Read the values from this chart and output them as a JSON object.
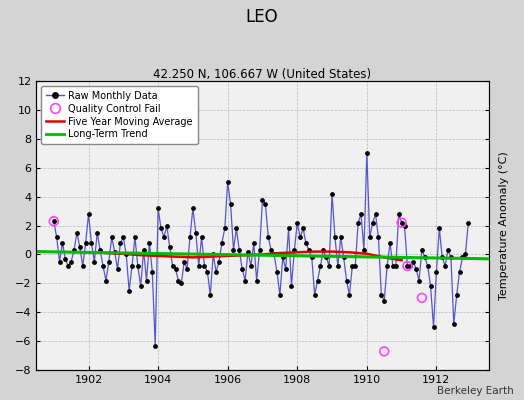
{
  "title": "LEO",
  "subtitle": "42.250 N, 106.667 W (United States)",
  "ylabel": "Temperature Anomaly (°C)",
  "credit": "Berkeley Earth",
  "ylim": [
    -8,
    12
  ],
  "xlim": [
    1900.5,
    1913.5
  ],
  "xticks": [
    1902,
    1904,
    1906,
    1908,
    1910,
    1912
  ],
  "yticks": [
    -8,
    -6,
    -4,
    -2,
    0,
    2,
    4,
    6,
    8,
    10,
    12
  ],
  "bg_color": "#d4d4d4",
  "plot_bg_color": "#f0f0f0",
  "raw_color": "#5555cc",
  "dot_color": "#000000",
  "moving_avg_color": "#dd0000",
  "trend_color": "#00bb00",
  "qc_color": "#ff44ff",
  "raw_data": [
    [
      1901.0,
      2.3
    ],
    [
      1901.083,
      1.2
    ],
    [
      1901.167,
      -0.5
    ],
    [
      1901.25,
      0.8
    ],
    [
      1901.333,
      -0.3
    ],
    [
      1901.417,
      -0.8
    ],
    [
      1901.5,
      -0.5
    ],
    [
      1901.583,
      0.3
    ],
    [
      1901.667,
      1.5
    ],
    [
      1901.75,
      0.5
    ],
    [
      1901.833,
      -0.8
    ],
    [
      1901.917,
      0.8
    ],
    [
      1902.0,
      2.8
    ],
    [
      1902.083,
      0.8
    ],
    [
      1902.167,
      -0.5
    ],
    [
      1902.25,
      1.5
    ],
    [
      1902.333,
      0.3
    ],
    [
      1902.417,
      -0.8
    ],
    [
      1902.5,
      -1.8
    ],
    [
      1902.583,
      -0.5
    ],
    [
      1902.667,
      1.2
    ],
    [
      1902.75,
      0.2
    ],
    [
      1902.833,
      -1.0
    ],
    [
      1902.917,
      0.8
    ],
    [
      1903.0,
      1.2
    ],
    [
      1903.083,
      0.0
    ],
    [
      1903.167,
      -2.5
    ],
    [
      1903.25,
      -0.8
    ],
    [
      1903.333,
      1.2
    ],
    [
      1903.417,
      -0.8
    ],
    [
      1903.5,
      -2.2
    ],
    [
      1903.583,
      0.3
    ],
    [
      1903.667,
      -1.8
    ],
    [
      1903.75,
      0.8
    ],
    [
      1903.833,
      -1.2
    ],
    [
      1903.917,
      -6.3
    ],
    [
      1904.0,
      3.2
    ],
    [
      1904.083,
      1.8
    ],
    [
      1904.167,
      1.2
    ],
    [
      1904.25,
      2.0
    ],
    [
      1904.333,
      0.5
    ],
    [
      1904.417,
      -0.8
    ],
    [
      1904.5,
      -1.0
    ],
    [
      1904.583,
      -1.8
    ],
    [
      1904.667,
      -2.0
    ],
    [
      1904.75,
      -0.5
    ],
    [
      1904.833,
      -1.0
    ],
    [
      1904.917,
      1.2
    ],
    [
      1905.0,
      3.2
    ],
    [
      1905.083,
      1.5
    ],
    [
      1905.167,
      -0.8
    ],
    [
      1905.25,
      1.2
    ],
    [
      1905.333,
      -0.8
    ],
    [
      1905.417,
      -1.2
    ],
    [
      1905.5,
      -2.8
    ],
    [
      1905.583,
      0.0
    ],
    [
      1905.667,
      -1.2
    ],
    [
      1905.75,
      -0.5
    ],
    [
      1905.833,
      0.8
    ],
    [
      1905.917,
      1.8
    ],
    [
      1906.0,
      5.0
    ],
    [
      1906.083,
      3.5
    ],
    [
      1906.167,
      0.3
    ],
    [
      1906.25,
      1.8
    ],
    [
      1906.333,
      0.3
    ],
    [
      1906.417,
      -1.0
    ],
    [
      1906.5,
      -1.8
    ],
    [
      1906.583,
      0.2
    ],
    [
      1906.667,
      -0.8
    ],
    [
      1906.75,
      0.8
    ],
    [
      1906.833,
      -1.8
    ],
    [
      1906.917,
      0.3
    ],
    [
      1907.0,
      3.8
    ],
    [
      1907.083,
      3.5
    ],
    [
      1907.167,
      1.2
    ],
    [
      1907.25,
      0.3
    ],
    [
      1907.333,
      0.0
    ],
    [
      1907.417,
      -1.2
    ],
    [
      1907.5,
      -2.8
    ],
    [
      1907.583,
      -0.2
    ],
    [
      1907.667,
      -1.0
    ],
    [
      1907.75,
      1.8
    ],
    [
      1907.833,
      -2.2
    ],
    [
      1907.917,
      0.3
    ],
    [
      1908.0,
      2.2
    ],
    [
      1908.083,
      1.2
    ],
    [
      1908.167,
      1.8
    ],
    [
      1908.25,
      0.8
    ],
    [
      1908.333,
      0.3
    ],
    [
      1908.417,
      -0.2
    ],
    [
      1908.5,
      -2.8
    ],
    [
      1908.583,
      -1.8
    ],
    [
      1908.667,
      -0.8
    ],
    [
      1908.75,
      0.3
    ],
    [
      1908.833,
      -0.2
    ],
    [
      1908.917,
      -0.8
    ],
    [
      1909.0,
      4.2
    ],
    [
      1909.083,
      1.2
    ],
    [
      1909.167,
      -0.8
    ],
    [
      1909.25,
      1.2
    ],
    [
      1909.333,
      -0.2
    ],
    [
      1909.417,
      -1.8
    ],
    [
      1909.5,
      -2.8
    ],
    [
      1909.583,
      -0.8
    ],
    [
      1909.667,
      -0.8
    ],
    [
      1909.75,
      2.2
    ],
    [
      1909.833,
      2.8
    ],
    [
      1909.917,
      0.3
    ],
    [
      1910.0,
      7.0
    ],
    [
      1910.083,
      1.2
    ],
    [
      1910.167,
      2.2
    ],
    [
      1910.25,
      2.8
    ],
    [
      1910.333,
      1.2
    ],
    [
      1910.417,
      -2.8
    ],
    [
      1910.5,
      -3.2
    ],
    [
      1910.583,
      -0.8
    ],
    [
      1910.667,
      0.8
    ],
    [
      1910.75,
      -0.8
    ],
    [
      1910.833,
      -0.8
    ],
    [
      1910.917,
      2.8
    ],
    [
      1911.0,
      2.2
    ],
    [
      1911.083,
      2.0
    ],
    [
      1911.167,
      -0.8
    ],
    [
      1911.25,
      -0.8
    ],
    [
      1911.333,
      -0.5
    ],
    [
      1911.417,
      -1.0
    ],
    [
      1911.5,
      -1.8
    ],
    [
      1911.583,
      0.3
    ],
    [
      1911.667,
      -0.2
    ],
    [
      1911.75,
      -0.8
    ],
    [
      1911.833,
      -2.2
    ],
    [
      1911.917,
      -5.0
    ],
    [
      1912.0,
      -1.2
    ],
    [
      1912.083,
      1.8
    ],
    [
      1912.167,
      -0.2
    ],
    [
      1912.25,
      -0.8
    ],
    [
      1912.333,
      0.3
    ],
    [
      1912.417,
      -0.2
    ],
    [
      1912.5,
      -4.8
    ],
    [
      1912.583,
      -2.8
    ],
    [
      1912.667,
      -1.2
    ],
    [
      1912.75,
      -0.2
    ],
    [
      1912.833,
      0.0
    ],
    [
      1912.917,
      2.2
    ]
  ],
  "qc_fails": [
    [
      1901.0,
      2.3
    ],
    [
      1910.5,
      -6.7
    ],
    [
      1911.0,
      2.2
    ],
    [
      1911.167,
      -0.8
    ],
    [
      1911.583,
      -3.0
    ]
  ],
  "moving_avg": [
    [
      1902.5,
      0.1
    ],
    [
      1903.0,
      0.05
    ],
    [
      1903.5,
      -0.05
    ],
    [
      1904.0,
      -0.1
    ],
    [
      1904.5,
      -0.15
    ],
    [
      1905.0,
      -0.2
    ],
    [
      1905.5,
      -0.15
    ],
    [
      1906.0,
      -0.1
    ],
    [
      1906.5,
      -0.05
    ],
    [
      1907.0,
      0.0
    ],
    [
      1907.5,
      0.1
    ],
    [
      1908.0,
      0.15
    ],
    [
      1908.5,
      0.2
    ],
    [
      1909.0,
      0.2
    ],
    [
      1909.5,
      0.15
    ],
    [
      1910.0,
      0.05
    ],
    [
      1910.5,
      -0.2
    ],
    [
      1911.0,
      -0.4
    ]
  ],
  "trend_x": [
    1900.5,
    1913.5
  ],
  "trend_y": [
    0.2,
    -0.3
  ]
}
